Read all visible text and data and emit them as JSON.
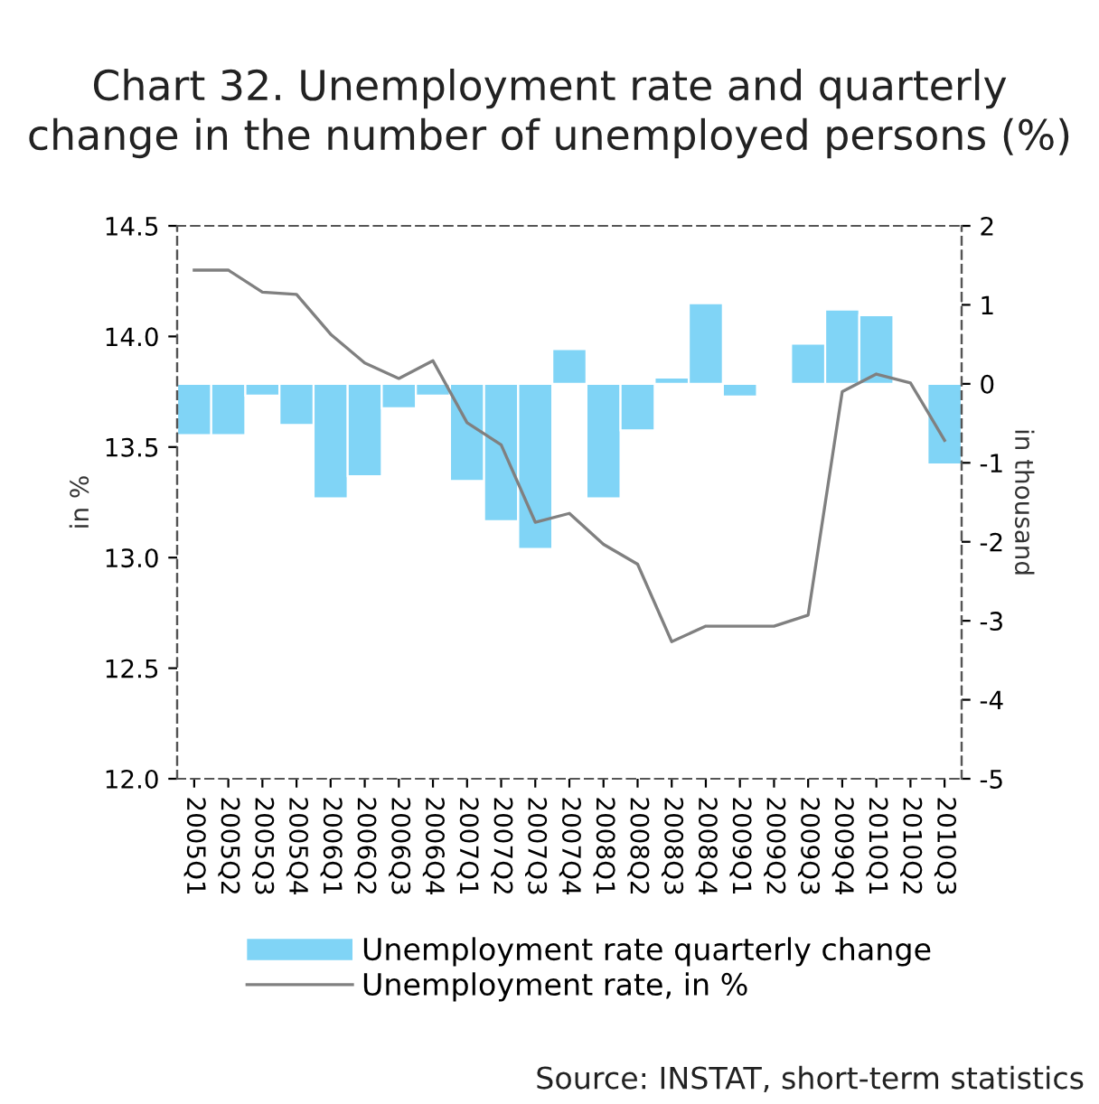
{
  "chart_data": {
    "type": "bar",
    "title": "Chart 32. Unemployment rate and quarterly\nchange in the number of unemployed persons (%)",
    "categories": [
      "2005Q1",
      "2005Q2",
      "2005Q3",
      "2005Q4",
      "2006Q1",
      "2006Q2",
      "2006Q3",
      "2006Q4",
      "2007Q1",
      "2007Q2",
      "2007Q3",
      "2007Q4",
      "2008Q1",
      "2008Q2",
      "2008Q3",
      "2008Q4",
      "2009Q1",
      "2009Q2",
      "2009Q3",
      "2009Q4",
      "2010Q1",
      "2010Q2",
      "2010Q3"
    ],
    "series": [
      {
        "name": "Unemployment rate quarterly change",
        "axis": "y2",
        "color": "#80d4f6",
        "values": [
          -0.65,
          -0.65,
          -0.15,
          -0.52,
          -1.45,
          -1.17,
          -0.31,
          -0.15,
          -1.23,
          -1.74,
          -2.09,
          0.44,
          -1.45,
          -0.59,
          0.08,
          1.02,
          -0.16,
          null,
          0.51,
          0.94,
          0.87,
          null,
          -1.02
        ]
      },
      {
        "name": "Unemployment rate, in %",
        "type": "line",
        "color": "#808080",
        "values": [
          14.3,
          14.3,
          14.2,
          14.19,
          14.01,
          13.88,
          13.81,
          13.89,
          13.61,
          13.51,
          13.16,
          13.2,
          13.06,
          12.97,
          12.62,
          12.69,
          12.69,
          12.69,
          12.74,
          13.75,
          13.83,
          13.79,
          13.53
        ]
      }
    ],
    "ylabel": "in %",
    "y2label": "in thousand",
    "ylim": [
      12,
      14.5
    ],
    "yticks": [
      {
        "value": 12,
        "label": "12.0"
      },
      {
        "value": 12.5,
        "label": "12.5"
      },
      {
        "value": 13,
        "label": "13.0"
      },
      {
        "value": 13.5,
        "label": "13.5"
      },
      {
        "value": 14,
        "label": "14.0"
      },
      {
        "value": 14.5,
        "label": "14.5"
      }
    ],
    "y2lim": [
      -5,
      2
    ],
    "y2ticks": [
      -5,
      -4,
      -3,
      -2,
      -1,
      0,
      1,
      2
    ],
    "grid": false,
    "legend": "bottom",
    "line_style": "solid",
    "marker": "none",
    "annotations": [
      "Source: INSTAT, short-term statistics"
    ]
  }
}
